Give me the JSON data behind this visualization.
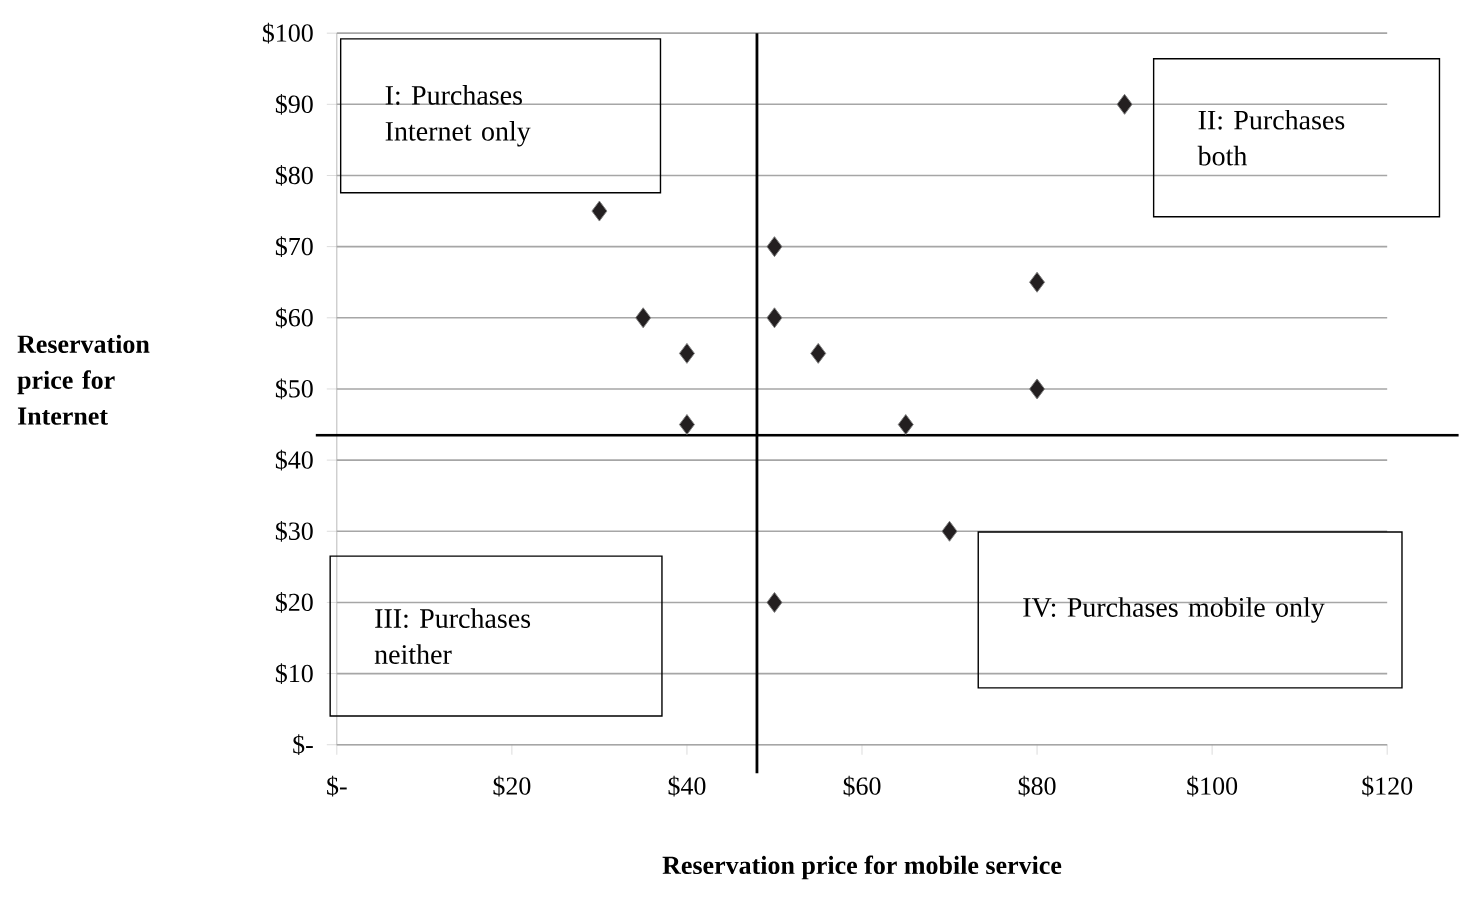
{
  "chart_data": {
    "type": "scatter",
    "xlabel": "Reservation price for mobile service",
    "ylabel": "Reservation price for Internet",
    "x": [
      30,
      35,
      40,
      40,
      50,
      50,
      55,
      65,
      80,
      80,
      90,
      70,
      50
    ],
    "values": [
      75,
      60,
      55,
      45,
      70,
      60,
      55,
      45,
      65,
      50,
      90,
      30,
      20
    ],
    "color": "#231f20",
    "marker": "diamond",
    "grid": "y",
    "xlim": [
      0,
      120
    ],
    "ylim": [
      0,
      100
    ],
    "xticks": [
      {
        "value": 0,
        "label": "$-"
      },
      {
        "value": 20,
        "label": "$20"
      },
      {
        "value": 40,
        "label": "$40"
      },
      {
        "value": 60,
        "label": "$60"
      },
      {
        "value": 80,
        "label": "$80"
      },
      {
        "value": 100,
        "label": "$100"
      },
      {
        "value": 120,
        "label": "$120"
      }
    ],
    "yticks": [
      {
        "value": 0,
        "label": "$-"
      },
      {
        "value": 10,
        "label": "$10"
      },
      {
        "value": 20,
        "label": "$20"
      },
      {
        "value": 30,
        "label": "$30"
      },
      {
        "value": 40,
        "label": "$40"
      },
      {
        "value": 50,
        "label": "$50"
      },
      {
        "value": 60,
        "label": "$60"
      },
      {
        "value": 70,
        "label": "$70"
      },
      {
        "value": 80,
        "label": "$80"
      },
      {
        "value": 90,
        "label": "$90"
      },
      {
        "value": 100,
        "label": "$100"
      }
    ],
    "ref_lines": [
      {
        "axis": "x",
        "value": 48
      },
      {
        "axis": "y",
        "value": 43.5
      }
    ],
    "annotations": [
      "I: Purchases Internet only",
      "II: Purchases both",
      "III: Purchases neither",
      "IV: Purchases mobile only"
    ]
  }
}
